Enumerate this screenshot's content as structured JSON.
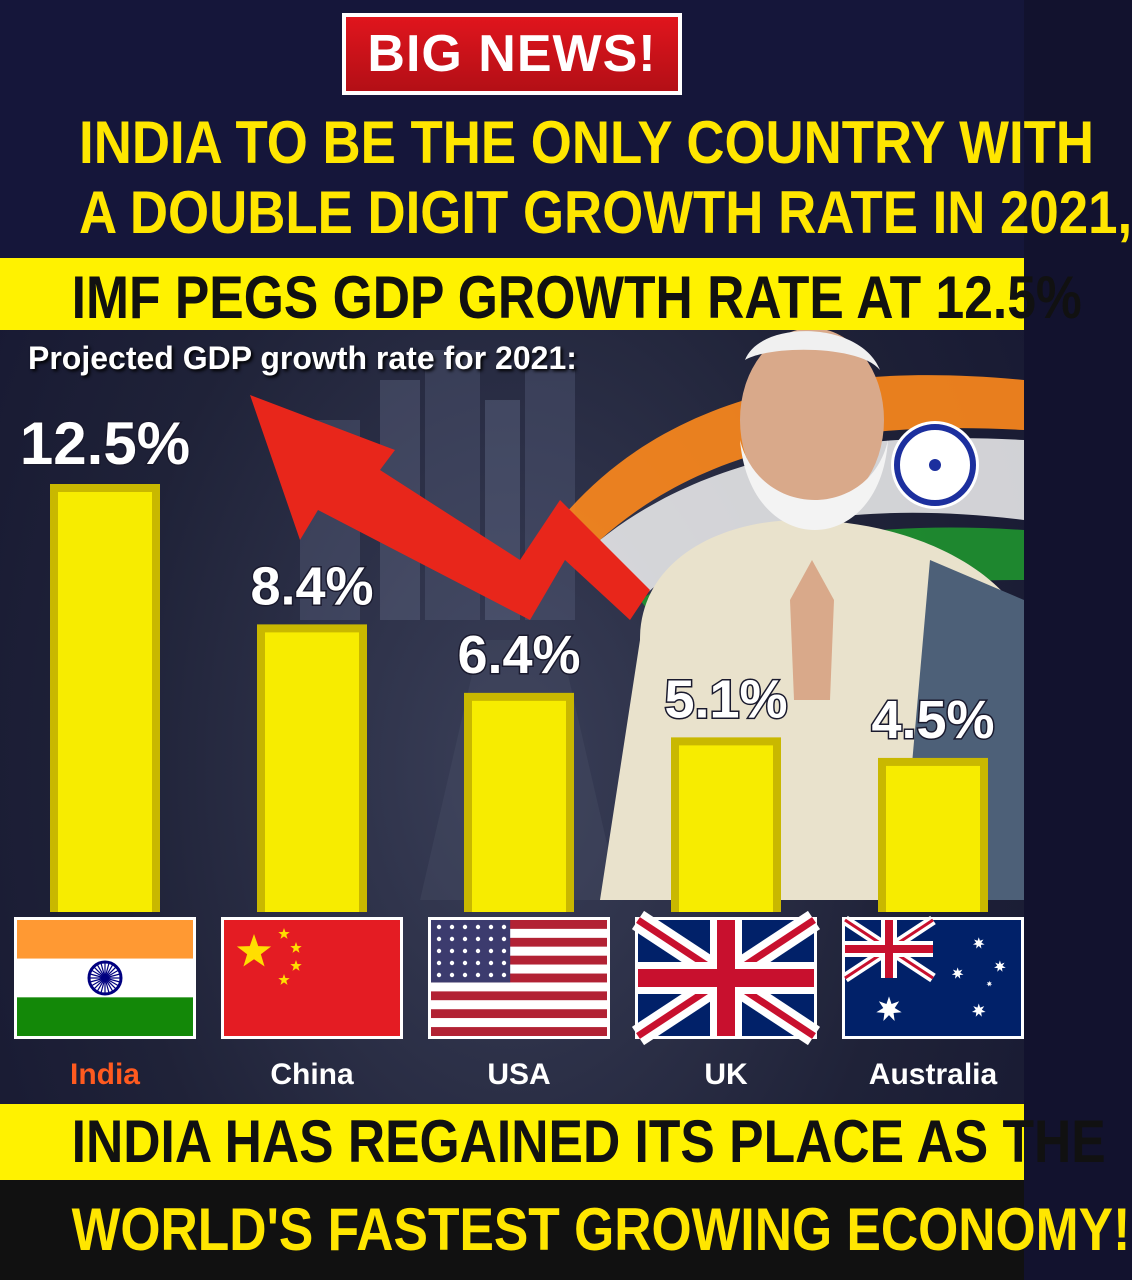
{
  "badge": "BIG NEWS!",
  "headline": {
    "line1": "INDIA TO BE THE ONLY COUNTRY WITH",
    "line2": "A DOUBLE DIGIT GROWTH RATE IN 2021,"
  },
  "subheadline": "IMF PEGS GDP GROWTH RATE AT 12.5%",
  "bottom": {
    "line1": "INDIA HAS REGAINED ITS PLACE AS THE",
    "line2": "WORLD'S FASTEST GROWING ECONOMY!"
  },
  "colors": {
    "bar": "#f7ec00",
    "bar_edge": "#c9b800",
    "highlight_label": "#ff5a1f",
    "label": "#ffffff",
    "headline": "#ffe600"
  },
  "chart_data": {
    "type": "bar",
    "title": "Projected GDP growth rate for 2021:",
    "categories": [
      "India",
      "China",
      "USA",
      "UK",
      "Australia"
    ],
    "values": [
      12.5,
      8.4,
      6.4,
      5.1,
      4.5
    ],
    "value_labels": [
      "12.5%",
      "8.4%",
      "6.4%",
      "5.1%",
      "4.5%"
    ],
    "flags": [
      "india-flag",
      "china-flag",
      "usa-flag",
      "uk-flag",
      "australia-flag"
    ],
    "highlight": "India",
    "xlabel": "",
    "ylabel": "",
    "ylim": [
      0,
      12.5
    ],
    "grid": false,
    "legend": "none"
  }
}
